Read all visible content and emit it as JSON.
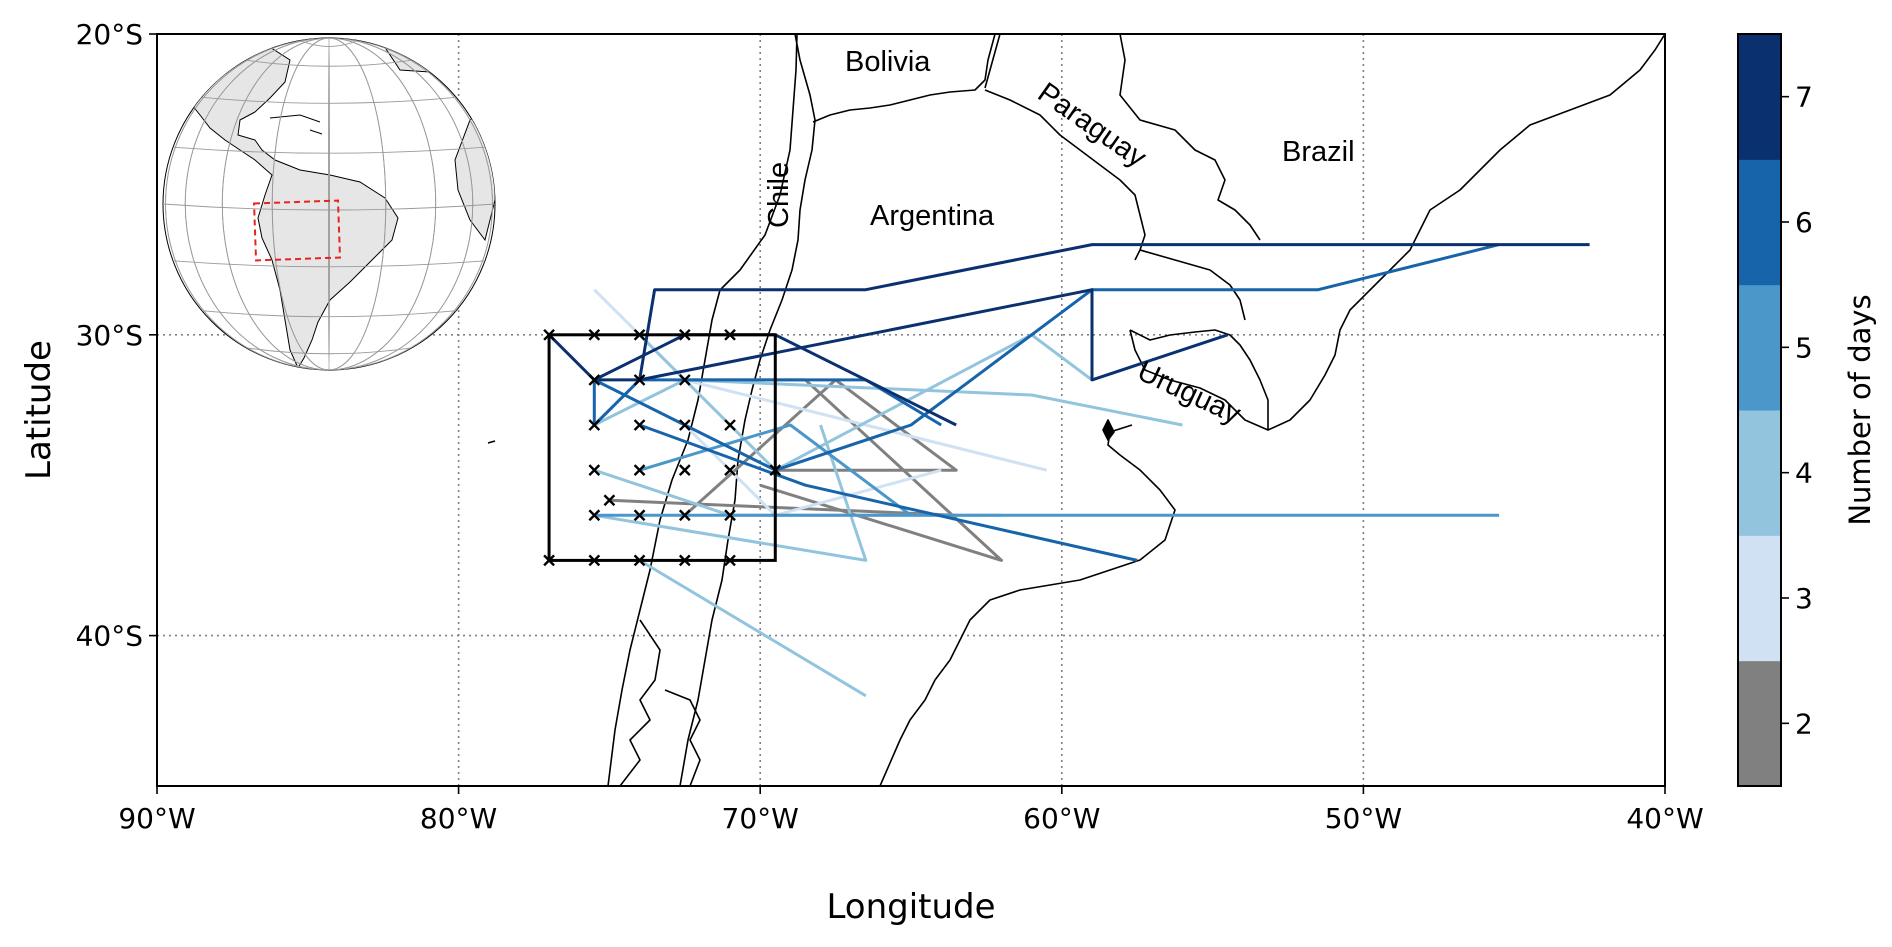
{
  "figure": {
    "xlabel": "Longitude",
    "ylabel": "Latitude",
    "x_ticks": [
      "90°W",
      "80°W",
      "70°W",
      "60°W",
      "50°W",
      "40°W"
    ],
    "y_ticks": [
      "20°S",
      "30°S",
      "40°S"
    ],
    "countries": [
      "Bolivia",
      "Paraguay",
      "Brazil",
      "Chile",
      "Argentina",
      "Uruguay"
    ],
    "colorbar": {
      "label": "Number of days",
      "ticks": [
        "2",
        "3",
        "4",
        "5",
        "6",
        "7"
      ],
      "colors": [
        "#808080",
        "#cfe1f2",
        "#93c4de",
        "#4b97c9",
        "#1764ab",
        "#0b3070"
      ]
    }
  },
  "chart_data": {
    "type": "map-trajectories",
    "lon_range": [
      -90,
      -40
    ],
    "lat_range": [
      -45,
      -20
    ],
    "grid": true,
    "region_box": {
      "lon": [
        -77,
        -69.5
      ],
      "lat": [
        -37.5,
        -30
      ]
    },
    "inset_globe": {
      "highlight_box": true
    },
    "trajectories": [
      {
        "days": 7,
        "points": [
          [
            -74,
            -31.5
          ],
          [
            -73.5,
            -28.5
          ],
          [
            -66.5,
            -28.5
          ],
          [
            -59,
            -27
          ],
          [
            -45.5,
            -27
          ],
          [
            -42.5,
            -27
          ]
        ]
      },
      {
        "days": 7,
        "points": [
          [
            -75.5,
            -31.5
          ],
          [
            -74,
            -31.5
          ],
          [
            -66.5,
            -30
          ],
          [
            -59,
            -28.5
          ],
          [
            -59,
            -31.5
          ],
          [
            -54.5,
            -30
          ]
        ]
      },
      {
        "days": 7,
        "points": [
          [
            -77,
            -30
          ],
          [
            -75.5,
            -31.5
          ],
          [
            -72.5,
            -30
          ],
          [
            -69.5,
            -30
          ],
          [
            -63.5,
            -33
          ]
        ]
      },
      {
        "days": 6,
        "points": [
          [
            -75.5,
            -33
          ],
          [
            -74,
            -31.5
          ],
          [
            -66.5,
            -31.5
          ],
          [
            -64,
            -33
          ]
        ]
      },
      {
        "days": 6,
        "points": [
          [
            -75.5,
            -33
          ],
          [
            -75.5,
            -31.5
          ],
          [
            -69.5,
            -34.5
          ],
          [
            -65,
            -33
          ],
          [
            -59,
            -28.5
          ],
          [
            -51.5,
            -28.5
          ],
          [
            -45.5,
            -27
          ]
        ]
      },
      {
        "days": 6,
        "points": [
          [
            -74,
            -33
          ],
          [
            -68.5,
            -35
          ],
          [
            -57.5,
            -37.5
          ]
        ]
      },
      {
        "days": 5,
        "points": [
          [
            -75.5,
            -36
          ],
          [
            -45.5,
            -36
          ]
        ]
      },
      {
        "days": 5,
        "points": [
          [
            -74,
            -34.5
          ],
          [
            -69,
            -33
          ],
          [
            -65,
            -36
          ]
        ]
      },
      {
        "days": 4,
        "points": [
          [
            -75.5,
            -33
          ],
          [
            -72.5,
            -31.5
          ],
          [
            -61,
            -32
          ],
          [
            -56,
            -33
          ]
        ]
      },
      {
        "days": 4,
        "points": [
          [
            -74,
            -30
          ],
          [
            -69.5,
            -34.5
          ],
          [
            -61,
            -30
          ],
          [
            -59,
            -31.5
          ]
        ]
      },
      {
        "days": 4,
        "points": [
          [
            -75.5,
            -34.5
          ],
          [
            -71,
            -36
          ],
          [
            -62,
            -36
          ]
        ]
      },
      {
        "days": 4,
        "points": [
          [
            -74,
            -37.5
          ],
          [
            -66.5,
            -42
          ]
        ]
      },
      {
        "days": 4,
        "points": [
          [
            -75.5,
            -36
          ],
          [
            -66.5,
            -37.5
          ],
          [
            -68,
            -33
          ]
        ]
      },
      {
        "days": 3,
        "points": [
          [
            -75.5,
            -28.5
          ],
          [
            -72.5,
            -31.5
          ],
          [
            -66.5,
            -33
          ],
          [
            -60.5,
            -34.5
          ]
        ]
      },
      {
        "days": 3,
        "points": [
          [
            -72.5,
            -33
          ],
          [
            -69.5,
            -36
          ],
          [
            -64,
            -34.5
          ]
        ]
      },
      {
        "days": 2,
        "points": [
          [
            -72.5,
            -36
          ],
          [
            -67.5,
            -31.5
          ],
          [
            -63.5,
            -34.5
          ],
          [
            -69.5,
            -34.5
          ]
        ]
      },
      {
        "days": 2,
        "points": [
          [
            -75,
            -35.5
          ],
          [
            -63.5,
            -36
          ]
        ]
      },
      {
        "days": 2,
        "points": [
          [
            -72.5,
            -31.5
          ],
          [
            -68.5,
            -31.5
          ],
          [
            -62,
            -37.5
          ],
          [
            -70,
            -35
          ]
        ]
      }
    ],
    "start_points": [
      [
        -77,
        -30
      ],
      [
        -75.5,
        -30
      ],
      [
        -74,
        -30
      ],
      [
        -72.5,
        -30
      ],
      [
        -71,
        -30
      ],
      [
        -75.5,
        -31.5
      ],
      [
        -74,
        -31.5
      ],
      [
        -72.5,
        -31.5
      ],
      [
        -75.5,
        -33
      ],
      [
        -74,
        -33
      ],
      [
        -72.5,
        -33
      ],
      [
        -71,
        -33
      ],
      [
        -75.5,
        -34.5
      ],
      [
        -74,
        -34.5
      ],
      [
        -72.5,
        -34.5
      ],
      [
        -71,
        -34.5
      ],
      [
        -69.5,
        -34.5
      ],
      [
        -75,
        -35.5
      ],
      [
        -75.5,
        -36
      ],
      [
        -74,
        -36
      ],
      [
        -72.5,
        -36
      ],
      [
        -71,
        -36
      ],
      [
        -77,
        -37.5
      ],
      [
        -75.5,
        -37.5
      ],
      [
        -74,
        -37.5
      ],
      [
        -72.5,
        -37.5
      ],
      [
        -71,
        -37.5
      ]
    ]
  }
}
